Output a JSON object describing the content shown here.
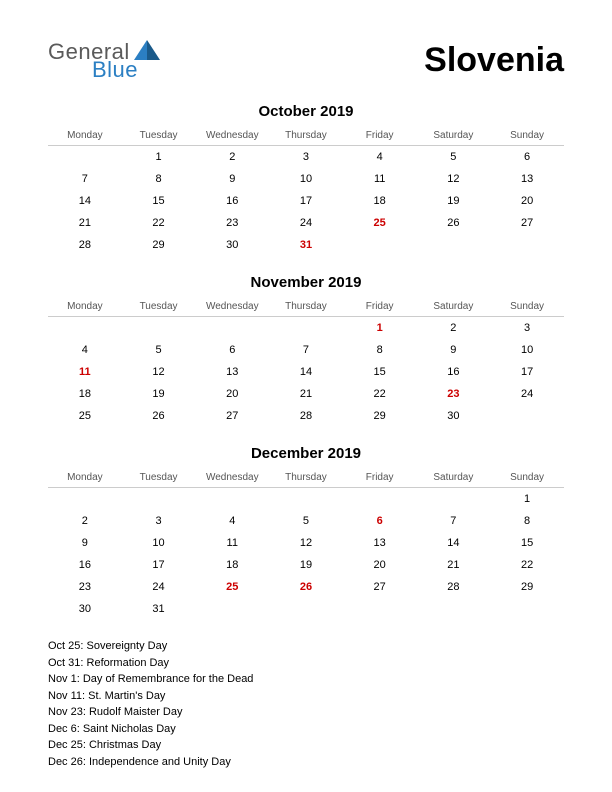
{
  "logo": {
    "text1": "General",
    "text2": "Blue",
    "shape_color": "#2b7fc3"
  },
  "country": "Slovenia",
  "day_headers": [
    "Monday",
    "Tuesday",
    "Wednesday",
    "Thursday",
    "Friday",
    "Saturday",
    "Sunday"
  ],
  "holiday_color": "#cc0000",
  "text_color": "#000000",
  "months": [
    {
      "title": "October 2019",
      "weeks": [
        [
          {
            "d": ""
          },
          {
            "d": "1"
          },
          {
            "d": "2"
          },
          {
            "d": "3"
          },
          {
            "d": "4"
          },
          {
            "d": "5"
          },
          {
            "d": "6"
          }
        ],
        [
          {
            "d": "7"
          },
          {
            "d": "8"
          },
          {
            "d": "9"
          },
          {
            "d": "10"
          },
          {
            "d": "11"
          },
          {
            "d": "12"
          },
          {
            "d": "13"
          }
        ],
        [
          {
            "d": "14"
          },
          {
            "d": "15"
          },
          {
            "d": "16"
          },
          {
            "d": "17"
          },
          {
            "d": "18"
          },
          {
            "d": "19"
          },
          {
            "d": "20"
          }
        ],
        [
          {
            "d": "21"
          },
          {
            "d": "22"
          },
          {
            "d": "23"
          },
          {
            "d": "24"
          },
          {
            "d": "25",
            "h": true
          },
          {
            "d": "26"
          },
          {
            "d": "27"
          }
        ],
        [
          {
            "d": "28"
          },
          {
            "d": "29"
          },
          {
            "d": "30"
          },
          {
            "d": "31",
            "h": true
          },
          {
            "d": ""
          },
          {
            "d": ""
          },
          {
            "d": ""
          }
        ]
      ]
    },
    {
      "title": "November 2019",
      "weeks": [
        [
          {
            "d": ""
          },
          {
            "d": ""
          },
          {
            "d": ""
          },
          {
            "d": ""
          },
          {
            "d": "1",
            "h": true
          },
          {
            "d": "2"
          },
          {
            "d": "3"
          }
        ],
        [
          {
            "d": "4"
          },
          {
            "d": "5"
          },
          {
            "d": "6"
          },
          {
            "d": "7"
          },
          {
            "d": "8"
          },
          {
            "d": "9"
          },
          {
            "d": "10"
          }
        ],
        [
          {
            "d": "11",
            "h": true
          },
          {
            "d": "12"
          },
          {
            "d": "13"
          },
          {
            "d": "14"
          },
          {
            "d": "15"
          },
          {
            "d": "16"
          },
          {
            "d": "17"
          }
        ],
        [
          {
            "d": "18"
          },
          {
            "d": "19"
          },
          {
            "d": "20"
          },
          {
            "d": "21"
          },
          {
            "d": "22"
          },
          {
            "d": "23",
            "h": true
          },
          {
            "d": "24"
          }
        ],
        [
          {
            "d": "25"
          },
          {
            "d": "26"
          },
          {
            "d": "27"
          },
          {
            "d": "28"
          },
          {
            "d": "29"
          },
          {
            "d": "30"
          },
          {
            "d": ""
          }
        ]
      ]
    },
    {
      "title": "December 2019",
      "weeks": [
        [
          {
            "d": ""
          },
          {
            "d": ""
          },
          {
            "d": ""
          },
          {
            "d": ""
          },
          {
            "d": ""
          },
          {
            "d": ""
          },
          {
            "d": "1"
          }
        ],
        [
          {
            "d": "2"
          },
          {
            "d": "3"
          },
          {
            "d": "4"
          },
          {
            "d": "5"
          },
          {
            "d": "6",
            "h": true
          },
          {
            "d": "7"
          },
          {
            "d": "8"
          }
        ],
        [
          {
            "d": "9"
          },
          {
            "d": "10"
          },
          {
            "d": "11"
          },
          {
            "d": "12"
          },
          {
            "d": "13"
          },
          {
            "d": "14"
          },
          {
            "d": "15"
          }
        ],
        [
          {
            "d": "16"
          },
          {
            "d": "17"
          },
          {
            "d": "18"
          },
          {
            "d": "19"
          },
          {
            "d": "20"
          },
          {
            "d": "21"
          },
          {
            "d": "22"
          }
        ],
        [
          {
            "d": "23"
          },
          {
            "d": "24"
          },
          {
            "d": "25",
            "h": true
          },
          {
            "d": "26",
            "h": true
          },
          {
            "d": "27"
          },
          {
            "d": "28"
          },
          {
            "d": "29"
          }
        ],
        [
          {
            "d": "30"
          },
          {
            "d": "31"
          },
          {
            "d": ""
          },
          {
            "d": ""
          },
          {
            "d": ""
          },
          {
            "d": ""
          },
          {
            "d": ""
          }
        ]
      ]
    }
  ],
  "holidays": [
    "Oct 25: Sovereignty Day",
    "Oct 31: Reformation Day",
    "Nov 1: Day of Remembrance for the Dead",
    "Nov 11: St. Martin's Day",
    "Nov 23: Rudolf Maister Day",
    "Dec 6: Saint Nicholas Day",
    "Dec 25: Christmas Day",
    "Dec 26: Independence and Unity Day"
  ]
}
